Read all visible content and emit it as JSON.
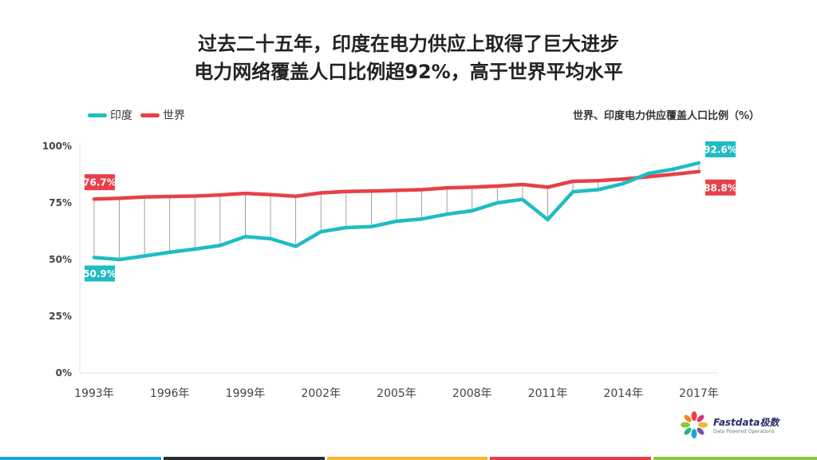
{
  "title": {
    "line1": "过去二十五年，印度在电力供应上取得了巨大进步",
    "line2": "电力网络覆盖人口比例超92%，高于世界平均水平"
  },
  "legend": [
    {
      "name": "印度",
      "color": "#1fbcc4"
    },
    {
      "name": "世界",
      "color": "#e84049"
    }
  ],
  "chart_note": "世界、印度电力供应覆盖人口比例（%）",
  "chart_data": {
    "type": "line",
    "x": [
      1993,
      1994,
      1995,
      1996,
      1997,
      1998,
      1999,
      2000,
      2001,
      2002,
      2003,
      2004,
      2005,
      2006,
      2007,
      2008,
      2009,
      2010,
      2011,
      2012,
      2013,
      2014,
      2015,
      2016,
      2017
    ],
    "x_tick_labels": [
      "1993年",
      "1996年",
      "1999年",
      "2002年",
      "2005年",
      "2008年",
      "2011年",
      "2014年",
      "2017年"
    ],
    "x_tick_years": [
      1993,
      1996,
      1999,
      2002,
      2005,
      2008,
      2011,
      2014,
      2017
    ],
    "y_tick_labels": [
      "0%",
      "25%",
      "50%",
      "75%",
      "100%"
    ],
    "y_ticks": [
      0,
      25,
      50,
      75,
      100
    ],
    "ylim": [
      0,
      100
    ],
    "series": [
      {
        "name": "印度",
        "color": "#1fbcc4",
        "values": [
          50.9,
          50.0,
          51.6,
          53.2,
          54.6,
          56.2,
          60.1,
          59.2,
          55.8,
          62.3,
          64.1,
          64.5,
          66.9,
          67.9,
          70.0,
          71.5,
          75.0,
          76.5,
          67.6,
          79.9,
          80.8,
          83.5,
          88.0,
          89.9,
          92.6
        ]
      },
      {
        "name": "世界",
        "color": "#e84049",
        "values": [
          76.7,
          77.0,
          77.6,
          77.8,
          78.0,
          78.5,
          79.2,
          78.6,
          77.9,
          79.4,
          80.0,
          80.2,
          80.5,
          80.8,
          81.6,
          81.9,
          82.4,
          83.1,
          81.9,
          84.5,
          84.8,
          85.5,
          86.5,
          87.6,
          88.8
        ]
      }
    ],
    "annotations": [
      {
        "text": "76.7%",
        "series": 1,
        "index": 0,
        "color": "#e84049"
      },
      {
        "text": "50.9%",
        "series": 0,
        "index": 0,
        "color": "#1fbcc4"
      },
      {
        "text": "92.6%",
        "series": 0,
        "index": 24,
        "color": "#1fbcc4"
      },
      {
        "text": "88.8%",
        "series": 1,
        "index": 24,
        "color": "#e84049"
      }
    ]
  },
  "logo": {
    "brand": "Fastdata极数",
    "tagline": "Data Powered Operations"
  },
  "bottom_bar_colors": [
    "#1aa9d6",
    "#2b2f33",
    "#f2b632",
    "#e84049",
    "#8cc63f"
  ]
}
